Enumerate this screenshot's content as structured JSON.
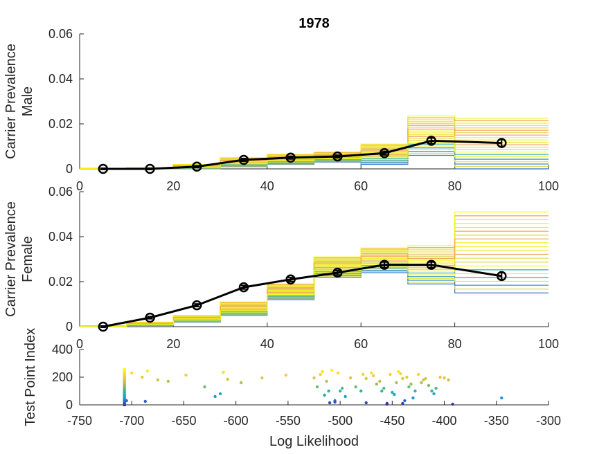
{
  "figure": {
    "title": "1978"
  },
  "chart_data": [
    {
      "type": "line",
      "name": "male-panel",
      "ylabel_lines": [
        "Carrier Prevalence",
        "Male"
      ],
      "xlim": [
        0,
        100
      ],
      "ylim": [
        0,
        0.06
      ],
      "xticks": [
        0,
        20,
        40,
        60,
        80,
        100
      ],
      "xtick_labels": [
        "0",
        "20",
        "40",
        "60",
        "80",
        "100"
      ],
      "yticks": [
        0,
        0.02,
        0.04,
        0.06
      ],
      "ytick_labels": [
        "0",
        "0.02",
        "0.04",
        "0.06"
      ],
      "mean_series": {
        "x": [
          5,
          15,
          25,
          35,
          45,
          55,
          65,
          75,
          90
        ],
        "y": [
          0.0,
          0.0,
          0.001,
          0.004,
          0.005,
          0.0055,
          0.007,
          0.0125,
          0.0115
        ],
        "err": [
          0.0003,
          0.0003,
          0.0004,
          0.0006,
          0.0006,
          0.0006,
          0.0008,
          0.0012,
          0.0015
        ]
      },
      "sample_bins": {
        "edges": [
          0,
          10,
          20,
          30,
          40,
          50,
          60,
          70,
          80,
          100
        ],
        "min": [
          0.0,
          0.0,
          0.0,
          0.001,
          0.002,
          0.003,
          0.002,
          0.006,
          0.0
        ],
        "max": [
          0.0002,
          0.0005,
          0.002,
          0.005,
          0.0065,
          0.0075,
          0.011,
          0.0235,
          0.0225
        ]
      }
    },
    {
      "type": "line",
      "name": "female-panel",
      "ylabel_lines": [
        "Carrier Prevalence",
        "Female"
      ],
      "xlim": [
        0,
        100
      ],
      "ylim": [
        0,
        0.06
      ],
      "xticks": [
        0,
        20,
        40,
        60,
        80,
        100
      ],
      "xtick_labels": [
        "0",
        "20",
        "40",
        "60",
        "80",
        "100"
      ],
      "yticks": [
        0,
        0.02,
        0.04,
        0.06
      ],
      "ytick_labels": [
        "0",
        "0.02",
        "0.04",
        "0.06"
      ],
      "mean_series": {
        "x": [
          5,
          15,
          25,
          35,
          45,
          55,
          65,
          75,
          90
        ],
        "y": [
          0.0,
          0.004,
          0.0095,
          0.0175,
          0.021,
          0.024,
          0.0275,
          0.0275,
          0.0225
        ],
        "err": [
          0.0003,
          0.0005,
          0.0006,
          0.0008,
          0.0009,
          0.001,
          0.0012,
          0.0012,
          0.0015
        ]
      },
      "sample_bins": {
        "edges": [
          0,
          10,
          20,
          30,
          40,
          50,
          60,
          70,
          80,
          100
        ],
        "min": [
          0.0,
          0.0005,
          0.002,
          0.005,
          0.012,
          0.022,
          0.024,
          0.019,
          0.015
        ],
        "max": [
          0.0004,
          0.002,
          0.005,
          0.011,
          0.019,
          0.031,
          0.035,
          0.036,
          0.051
        ]
      }
    },
    {
      "type": "scatter",
      "name": "likelihood-panel",
      "xlabel": "Log Likelihood",
      "ylabel": "Test Point Index",
      "xlim": [
        -750,
        -300
      ],
      "ylim": [
        0,
        400
      ],
      "xticks": [
        -750,
        -700,
        -650,
        -600,
        -550,
        -500,
        -450,
        -400,
        -350,
        -300
      ],
      "xtick_labels": [
        "-750",
        "-700",
        "-650",
        "-600",
        "-550",
        "-500",
        "-450",
        "-400",
        "-350",
        "-300"
      ],
      "yticks": [
        0,
        200,
        400
      ],
      "ytick_labels": [
        "0",
        "200",
        "400"
      ],
      "colormap": [
        "#3e26a8",
        "#1f96d8",
        "#2bb7a0",
        "#a6be4f",
        "#f7c53e",
        "#f9fb0e"
      ],
      "cluster": {
        "x": -707,
        "y_range": [
          0,
          260
        ]
      },
      "points": [
        [
          -700,
          230
        ],
        [
          -690,
          200
        ],
        [
          -685,
          245
        ],
        [
          -675,
          180
        ],
        [
          -665,
          170
        ],
        [
          -648,
          215
        ],
        [
          -630,
          130
        ],
        [
          -620,
          60
        ],
        [
          -615,
          80
        ],
        [
          -612,
          235
        ],
        [
          -608,
          185
        ],
        [
          -595,
          160
        ],
        [
          -575,
          195
        ],
        [
          -552,
          215
        ],
        [
          -525,
          195
        ],
        [
          -522,
          130
        ],
        [
          -519,
          220
        ],
        [
          -517,
          240
        ],
        [
          -515,
          70
        ],
        [
          -513,
          170
        ],
        [
          -511,
          100
        ],
        [
          -508,
          250
        ],
        [
          -505,
          30
        ],
        [
          -502,
          230
        ],
        [
          -500,
          100
        ],
        [
          -498,
          120
        ],
        [
          -495,
          60
        ],
        [
          -490,
          195
        ],
        [
          -485,
          130
        ],
        [
          -480,
          100
        ],
        [
          -478,
          220
        ],
        [
          -475,
          190
        ],
        [
          -470,
          230
        ],
        [
          -468,
          210
        ],
        [
          -465,
          150
        ],
        [
          -462,
          170
        ],
        [
          -460,
          100
        ],
        [
          -458,
          120
        ],
        [
          -455,
          10
        ],
        [
          -452,
          220
        ],
        [
          -450,
          90
        ],
        [
          -448,
          75
        ],
        [
          -446,
          160
        ],
        [
          -444,
          240
        ],
        [
          -442,
          225
        ],
        [
          -440,
          190
        ],
        [
          -438,
          30
        ],
        [
          -436,
          200
        ],
        [
          -434,
          130
        ],
        [
          -432,
          150
        ],
        [
          -430,
          50
        ],
        [
          -428,
          100
        ],
        [
          -425,
          220
        ],
        [
          -422,
          160
        ],
        [
          -420,
          180
        ],
        [
          -418,
          190
        ],
        [
          -415,
          140
        ],
        [
          -412,
          100
        ],
        [
          -410,
          80
        ],
        [
          -408,
          120
        ],
        [
          -404,
          200
        ],
        [
          -400,
          195
        ],
        [
          -396,
          180
        ],
        [
          -392,
          5
        ],
        [
          -345,
          50
        ],
        [
          -705,
          30
        ],
        [
          -687,
          25
        ],
        [
          -505,
          20
        ],
        [
          -510,
          15
        ],
        [
          -475,
          15
        ],
        [
          -440,
          10
        ],
        [
          -455,
          5
        ]
      ]
    }
  ]
}
